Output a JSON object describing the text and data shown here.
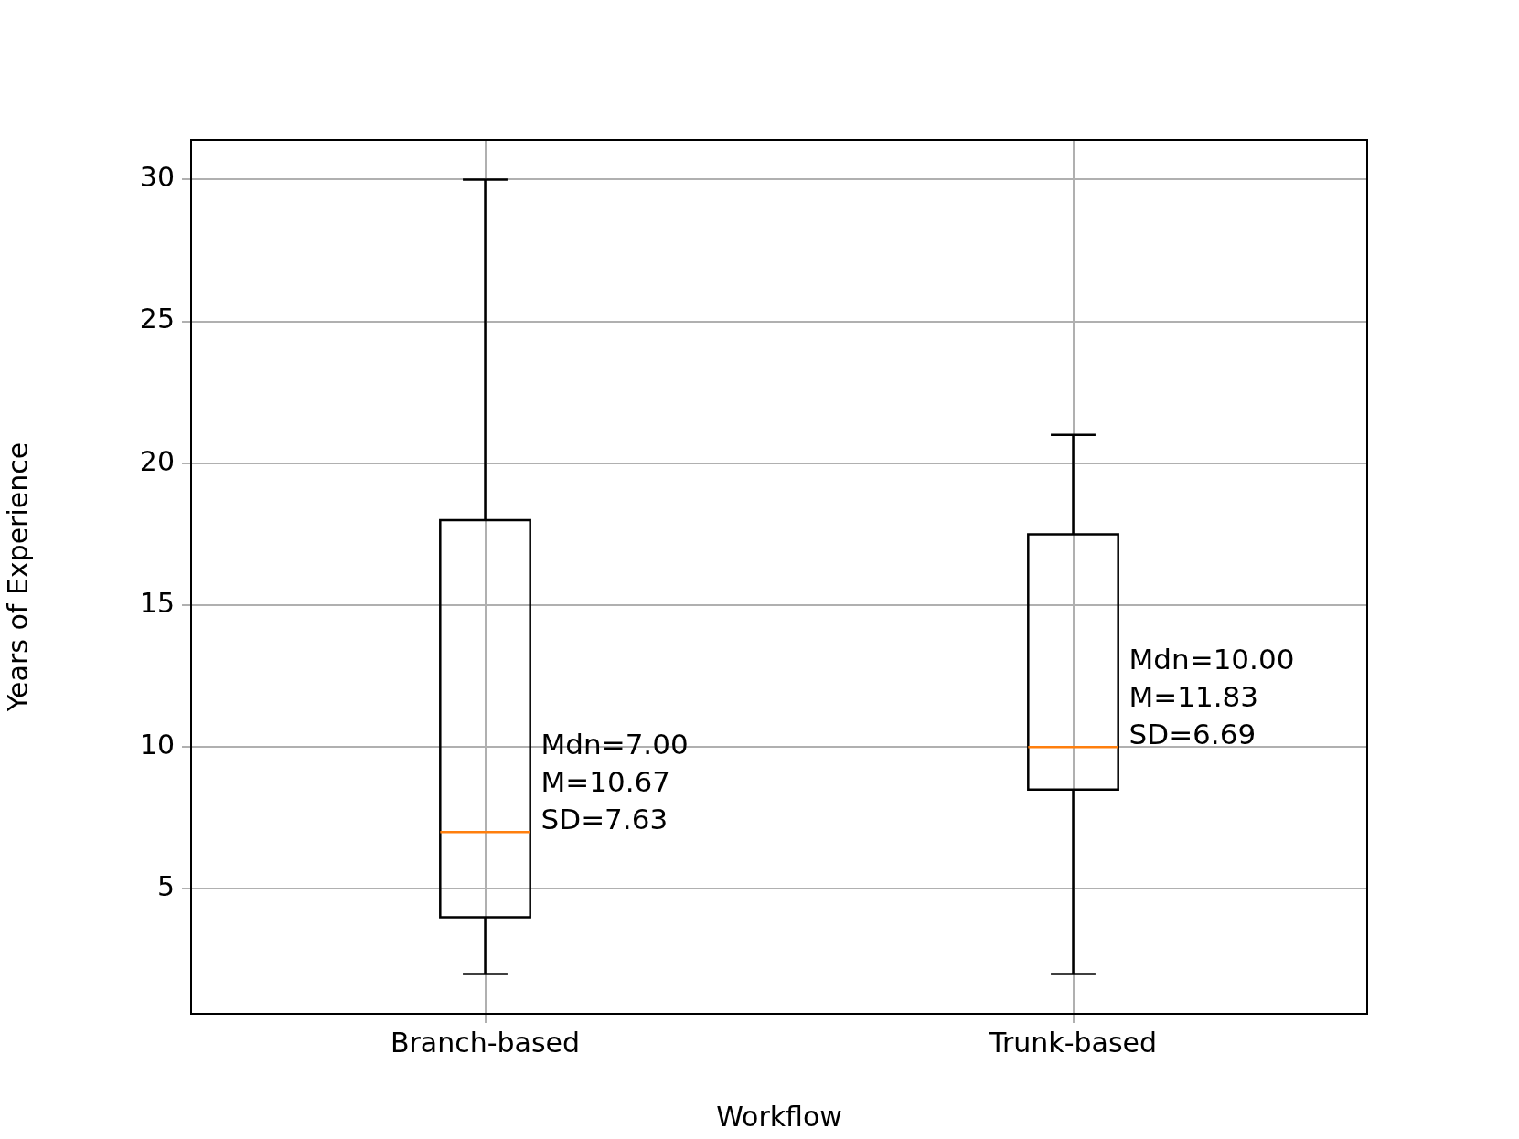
{
  "chart_data": {
    "type": "box",
    "xlabel": "Workflow",
    "ylabel": "Years of Experience",
    "categories": [
      "Branch-based",
      "Trunk-based"
    ],
    "boxes": [
      {
        "low": 2,
        "q1": 4,
        "median": 7,
        "q3": 18,
        "high": 30
      },
      {
        "low": 2,
        "q1": 8.5,
        "median": 10,
        "q3": 17.5,
        "high": 21
      }
    ],
    "ylim": [
      0.6,
      31.4
    ],
    "yticks": [
      5,
      10,
      15,
      20,
      25,
      30
    ],
    "grid": true,
    "annotations": [
      {
        "text": "Mdn=7.00\nM=10.67\nSD=7.63",
        "x": "Branch-based",
        "y": 7
      },
      {
        "text": "Mdn=10.00\nM=11.83\nSD=6.69",
        "x": "Trunk-based",
        "y": 10
      }
    ]
  }
}
